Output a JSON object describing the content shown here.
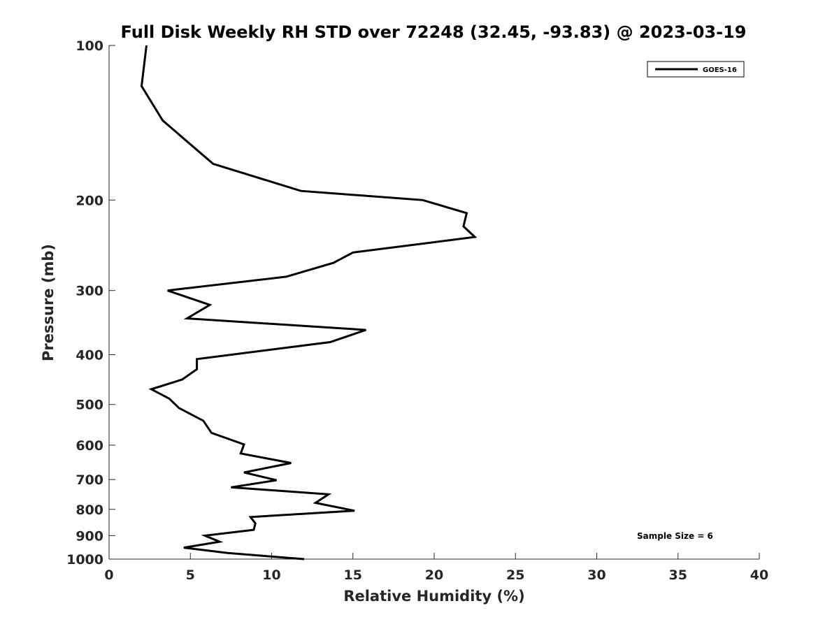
{
  "chart_data": {
    "type": "line",
    "title": "Full Disk Weekly RH STD over 72248 (32.45, -93.83) @ 2023-03-19",
    "xlabel": "Relative Humidity (%)",
    "ylabel": "Pressure (mb)",
    "xlim": [
      0,
      40
    ],
    "ylim": [
      100,
      1000
    ],
    "y_scale": "log",
    "y_reversed": true,
    "x_ticks": [
      0,
      5,
      10,
      15,
      20,
      25,
      30,
      35,
      40
    ],
    "x_tick_labels": [
      "0",
      "5",
      "10",
      "15",
      "20",
      "25",
      "30",
      "35",
      "40"
    ],
    "y_ticks": [
      100,
      200,
      300,
      400,
      500,
      600,
      700,
      800,
      900,
      1000
    ],
    "y_tick_labels": [
      "100",
      "200",
      "300",
      "400",
      "500",
      "600",
      "700",
      "800",
      "900",
      "1000"
    ],
    "grid": false,
    "legend_position": "top-right",
    "annotation": "Sample Size = 6",
    "series": [
      {
        "name": "GOES-16",
        "color": "#000000",
        "points": [
          [
            2.3,
            100
          ],
          [
            2.0,
            120
          ],
          [
            3.3,
            140
          ],
          [
            6.4,
            170
          ],
          [
            11.8,
            192
          ],
          [
            19.3,
            200
          ],
          [
            22.0,
            212
          ],
          [
            21.8,
            225
          ],
          [
            22.5,
            236
          ],
          [
            15.0,
            253
          ],
          [
            13.8,
            265
          ],
          [
            10.9,
            282
          ],
          [
            3.6,
            300
          ],
          [
            6.2,
            320
          ],
          [
            4.8,
            340
          ],
          [
            15.8,
            358
          ],
          [
            13.6,
            378
          ],
          [
            5.4,
            408
          ],
          [
            5.4,
            427
          ],
          [
            4.5,
            447
          ],
          [
            2.6,
            467
          ],
          [
            3.7,
            487
          ],
          [
            4.3,
            508
          ],
          [
            5.8,
            538
          ],
          [
            6.3,
            568
          ],
          [
            8.3,
            598
          ],
          [
            8.1,
            623
          ],
          [
            11.2,
            650
          ],
          [
            8.3,
            678
          ],
          [
            10.3,
            702
          ],
          [
            7.5,
            725
          ],
          [
            13.5,
            748
          ],
          [
            12.7,
            777
          ],
          [
            15.1,
            805
          ],
          [
            8.7,
            828
          ],
          [
            9.0,
            852
          ],
          [
            8.9,
            877
          ],
          [
            5.9,
            900
          ],
          [
            6.8,
            925
          ],
          [
            4.6,
            950
          ],
          [
            7.3,
            973
          ],
          [
            12.0,
            1000
          ]
        ]
      }
    ]
  }
}
